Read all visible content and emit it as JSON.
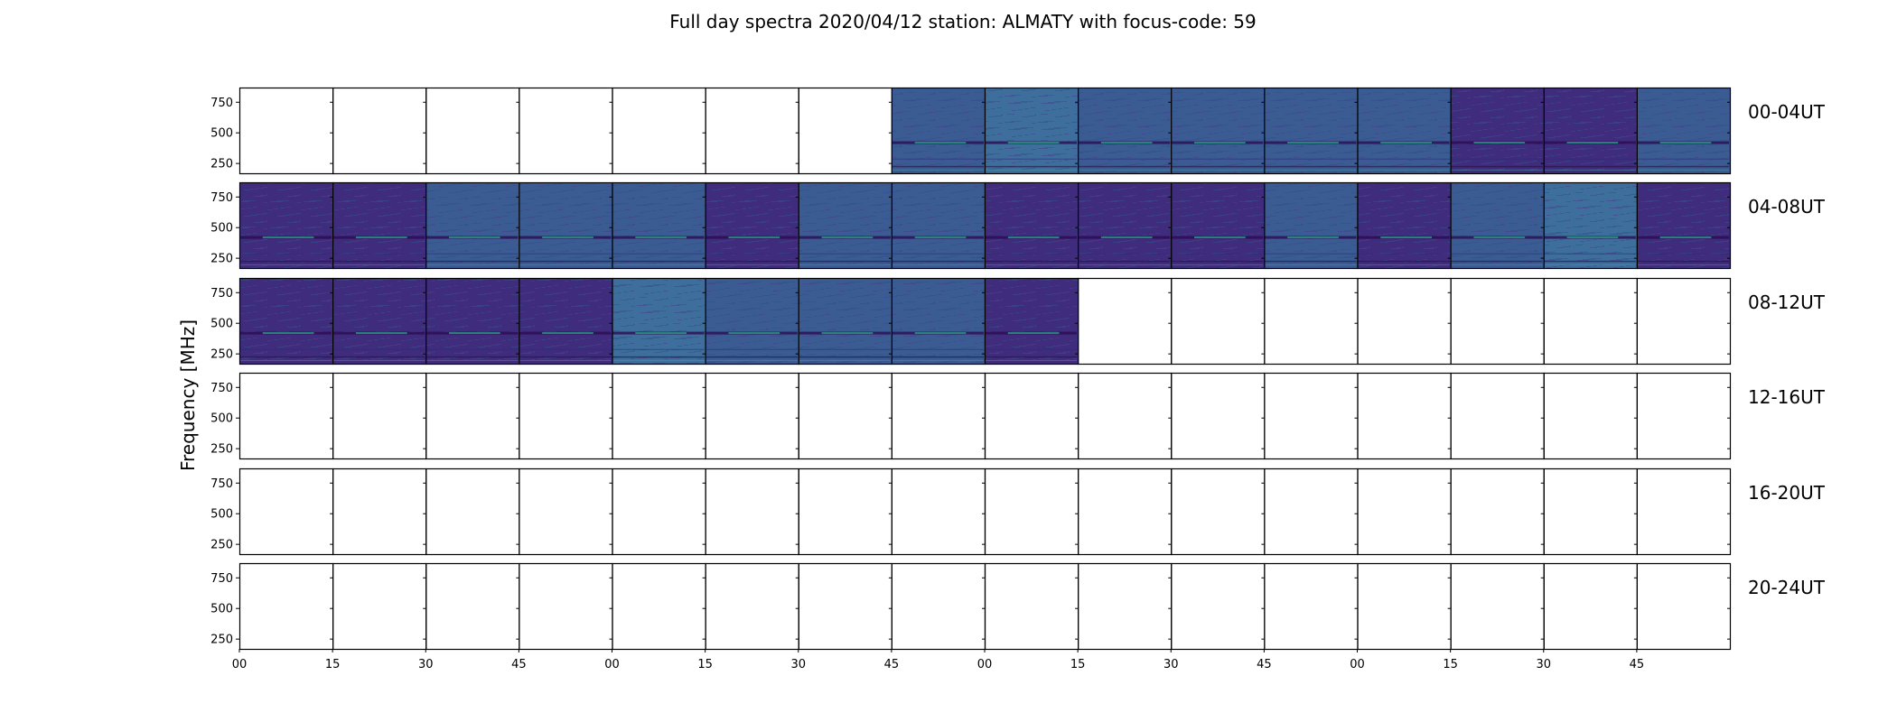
{
  "chart_data": {
    "type": "heatmap",
    "title": "Full day spectra 2020/04/12 station: ALMATY with focus-code: 59",
    "ylabel": "Frequency [MHz]",
    "xlabel": "",
    "y_ticks": [
      250,
      500,
      750
    ],
    "ylim": [
      170,
      870
    ],
    "x_tick_labels": [
      "00",
      "15",
      "30",
      "45",
      "00",
      "15",
      "30",
      "45",
      "00",
      "15",
      "30",
      "45",
      "00",
      "15",
      "30",
      "45"
    ],
    "panels_per_row": 16,
    "panel_duration_minutes": 15,
    "rows": [
      {
        "label": "00-04UT",
        "spectra": [
          0,
          0,
          0,
          0,
          0,
          0,
          0,
          1,
          1,
          1,
          1,
          1,
          1,
          1,
          1,
          1
        ],
        "tones": [
          "",
          "",
          "",
          "",
          "",
          "",
          "",
          "blue",
          "blue-light",
          "blue",
          "blue",
          "blue",
          "blue",
          "purple",
          "purple",
          "blue"
        ]
      },
      {
        "label": "04-08UT",
        "spectra": [
          1,
          1,
          1,
          1,
          1,
          1,
          1,
          1,
          1,
          1,
          1,
          1,
          1,
          1,
          1,
          1
        ],
        "tones": [
          "purple",
          "purple",
          "blue",
          "blue",
          "blue",
          "purple",
          "blue",
          "blue",
          "purple",
          "purple",
          "purple",
          "blue",
          "purple",
          "blue",
          "blue-light",
          "purple"
        ]
      },
      {
        "label": "08-12UT",
        "spectra": [
          1,
          1,
          1,
          1,
          1,
          1,
          1,
          1,
          1,
          0,
          0,
          0,
          0,
          0,
          0,
          0
        ],
        "tones": [
          "purple",
          "purple",
          "purple",
          "purple",
          "blue-light",
          "blue",
          "blue",
          "blue",
          "purple",
          "",
          "",
          "",
          "",
          "",
          "",
          ""
        ]
      },
      {
        "label": "12-16UT",
        "spectra": [
          0,
          0,
          0,
          0,
          0,
          0,
          0,
          0,
          0,
          0,
          0,
          0,
          0,
          0,
          0,
          0
        ],
        "tones": []
      },
      {
        "label": "16-20UT",
        "spectra": [
          0,
          0,
          0,
          0,
          0,
          0,
          0,
          0,
          0,
          0,
          0,
          0,
          0,
          0,
          0,
          0
        ],
        "tones": []
      },
      {
        "label": "20-24UT",
        "spectra": [
          0,
          0,
          0,
          0,
          0,
          0,
          0,
          0,
          0,
          0,
          0,
          0,
          0,
          0,
          0,
          0
        ],
        "tones": []
      }
    ],
    "colors": {
      "purple": "#402c7c",
      "blue": "#3a5c92",
      "blue-light": "#3e6f9c",
      "line-dark": "#2a0c52",
      "line-bright": "#2aa88a"
    },
    "colormap": "viridis",
    "grid": false,
    "legend": "none"
  }
}
